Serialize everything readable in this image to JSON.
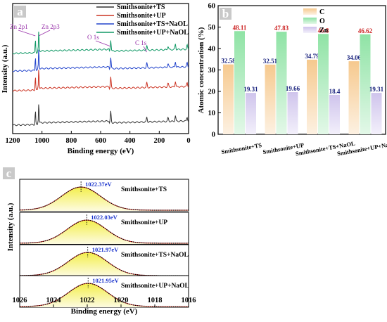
{
  "figure": {
    "panel_a": {
      "letter": "a",
      "xlabel": "Binding energy (eV)",
      "ylabel": "Intensity (a.u.)",
      "xticks": [
        "1200",
        "1000",
        "800",
        "600",
        "400",
        "200",
        "0"
      ],
      "peak_labels": [
        "Zn 2p1",
        "Zn 2p3",
        "O 1s",
        "C 1s"
      ],
      "legend": [
        "Smithsonite+TS",
        "Smithsonite+UP",
        "Smithsonite+TS+NaOL",
        "Smithsonite+UP+NaOL"
      ],
      "colors": [
        "#333333",
        "#cc3322",
        "#2244cc",
        "#119966"
      ]
    },
    "panel_b": {
      "letter": "b",
      "ylabel": "Atomic concentration (%)",
      "legend": [
        "C",
        "O",
        "Zn"
      ],
      "colors": {
        "C": "#f6c98e",
        "O": "#8fe3a5",
        "Zn": "#cfc4ec"
      },
      "value_label_color": "#cc2222"
    },
    "panel_c": {
      "letter": "c",
      "xlabel": "Binding energy (eV)",
      "ylabel": "Intensity (a.u.)",
      "xticks": [
        "1026",
        "1024",
        "1022",
        "1020",
        "1018",
        "1016"
      ],
      "peak_label_color": "#1a33cc"
    }
  },
  "chart_data": [
    {
      "type": "line",
      "panel": "a",
      "xlabel": "Binding energy (eV)",
      "ylabel": "Intensity (a.u.)",
      "xlim": [
        1200,
        0
      ],
      "x_reversed": true,
      "series": [
        {
          "name": "Smithsonite+TS"
        },
        {
          "name": "Smithsonite+UP"
        },
        {
          "name": "Smithsonite+TS+NaOL"
        },
        {
          "name": "Smithsonite+UP+NaOL"
        }
      ],
      "peaks": [
        {
          "label": "Zn 2p1",
          "x": 1045
        },
        {
          "label": "Zn 2p3",
          "x": 1022
        },
        {
          "label": "O 1s",
          "x": 531
        },
        {
          "label": "C 1s",
          "x": 285
        }
      ]
    },
    {
      "type": "bar",
      "panel": "b",
      "ylabel": "Atomic concentration (%)",
      "ylim": [
        0,
        60
      ],
      "yticks": [
        0,
        10,
        20,
        30,
        40,
        50,
        60
      ],
      "categories": [
        "Smithsonite+TS",
        "Smithsonite+UP",
        "Smithsonite+TS+NaOL",
        "Smithsonite+UP+NaOL"
      ],
      "series": [
        {
          "name": "C",
          "values": [
            32.58,
            32.51,
            34.79,
            34.06
          ]
        },
        {
          "name": "O",
          "values": [
            48.11,
            47.83,
            46.8,
            46.62
          ]
        },
        {
          "name": "Zn",
          "values": [
            19.31,
            19.66,
            18.4,
            19.31
          ]
        }
      ]
    },
    {
      "type": "line",
      "panel": "c",
      "xlabel": "Binding energy (eV)",
      "ylabel": "Intensity (a.u.)",
      "xlim": [
        1026,
        1016
      ],
      "x_reversed": true,
      "subplots": [
        {
          "name": "Smithsonite+TS",
          "peak": 1022.37,
          "peak_label": "1022.37eV"
        },
        {
          "name": "Smithsonite+UP",
          "peak": 1022.03,
          "peak_label": "1022.03eV"
        },
        {
          "name": "Smithsonite+TS+NaOL",
          "peak": 1021.97,
          "peak_label": "1021.97eV"
        },
        {
          "name": "Smithsonite+UP+NaOL",
          "peak": 1021.95,
          "peak_label": "1021.95eV"
        }
      ]
    }
  ]
}
